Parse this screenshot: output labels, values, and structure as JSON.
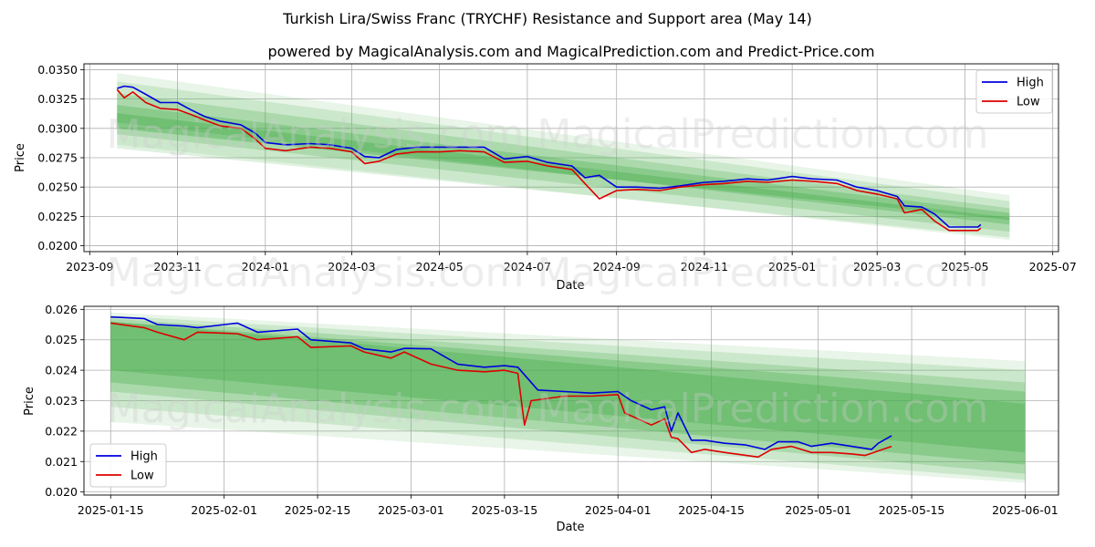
{
  "title": "Turkish Lira/Swiss Franc (TRYCHF) Resistance and Support area (May 14)",
  "subtitle": "powered by MagicalAnalysis.com and MagicalPrediction.com and Predict-Price.com",
  "watermark": "MagicalAnalysis.com    MagicalPrediction.com",
  "colors": {
    "high": "#0000dd",
    "low": "#dd0000",
    "band": "#4caf50",
    "grid": "#b0b0b0"
  },
  "chart_data": [
    {
      "type": "line",
      "xlabel": "Date",
      "ylabel": "Price",
      "xlim": [
        "2023-08-28",
        "2025-07-05"
      ],
      "ylim": [
        0.0195,
        0.0355
      ],
      "x_ticks": [
        "2023-09",
        "2023-11",
        "2024-01",
        "2024-03",
        "2024-05",
        "2024-07",
        "2024-09",
        "2024-11",
        "2025-01",
        "2025-03",
        "2025-05",
        "2025-07"
      ],
      "y_ticks": [
        "0.0200",
        "0.0225",
        "0.0250",
        "0.0275",
        "0.0300",
        "0.0325",
        "0.0350"
      ],
      "legend": {
        "position": "top-right",
        "entries": [
          "High",
          "Low"
        ]
      },
      "grid": true,
      "band": {
        "start": "2023-09-20",
        "end": "2025-06-01",
        "upper_start": [
          0.0347,
          0.034,
          0.033,
          0.032,
          0.0313
        ],
        "upper_end": [
          0.0243,
          0.0238,
          0.0232,
          0.0228,
          0.0224
        ],
        "lower_start": [
          0.0286,
          0.0283,
          0.0295,
          0.0305,
          0.03
        ],
        "lower_end": [
          0.0205,
          0.0207,
          0.0212,
          0.0218,
          0.0222
        ]
      },
      "series": [
        {
          "name": "High",
          "x": [
            "2023-09-20",
            "2023-09-25",
            "2023-10-01",
            "2023-10-10",
            "2023-10-20",
            "2023-11-01",
            "2023-11-10",
            "2023-11-20",
            "2023-12-01",
            "2023-12-15",
            "2023-12-25",
            "2024-01-01",
            "2024-01-15",
            "2024-02-01",
            "2024-02-15",
            "2024-03-01",
            "2024-03-10",
            "2024-03-20",
            "2024-04-01",
            "2024-04-15",
            "2024-05-01",
            "2024-05-15",
            "2024-06-01",
            "2024-06-15",
            "2024-07-01",
            "2024-07-15",
            "2024-08-01",
            "2024-08-10",
            "2024-08-20",
            "2024-09-01",
            "2024-09-15",
            "2024-10-01",
            "2024-10-15",
            "2024-11-01",
            "2024-11-15",
            "2024-12-01",
            "2024-12-15",
            "2025-01-01",
            "2025-01-15",
            "2025-02-01",
            "2025-02-15",
            "2025-03-01",
            "2025-03-15",
            "2025-03-20",
            "2025-04-01",
            "2025-04-10",
            "2025-04-20",
            "2025-05-01",
            "2025-05-10",
            "2025-05-12"
          ],
          "y": [
            0.0334,
            0.0336,
            0.0335,
            0.0329,
            0.0322,
            0.0322,
            0.0316,
            0.031,
            0.0306,
            0.0303,
            0.0296,
            0.0288,
            0.0286,
            0.0287,
            0.0286,
            0.0283,
            0.0276,
            0.0275,
            0.0282,
            0.0284,
            0.0284,
            0.0284,
            0.0284,
            0.0274,
            0.0276,
            0.0271,
            0.0268,
            0.0258,
            0.026,
            0.025,
            0.025,
            0.0249,
            0.0251,
            0.0254,
            0.0255,
            0.0257,
            0.0256,
            0.0259,
            0.0257,
            0.0256,
            0.025,
            0.0247,
            0.0242,
            0.0234,
            0.0233,
            0.0227,
            0.0216,
            0.0216,
            0.0216,
            0.0218
          ]
        },
        {
          "name": "Low",
          "x": [
            "2023-09-20",
            "2023-09-25",
            "2023-10-01",
            "2023-10-10",
            "2023-10-20",
            "2023-11-01",
            "2023-11-10",
            "2023-11-20",
            "2023-12-01",
            "2023-12-15",
            "2023-12-25",
            "2024-01-01",
            "2024-01-15",
            "2024-02-01",
            "2024-02-15",
            "2024-03-01",
            "2024-03-10",
            "2024-03-20",
            "2024-04-01",
            "2024-04-15",
            "2024-05-01",
            "2024-05-15",
            "2024-06-01",
            "2024-06-15",
            "2024-07-01",
            "2024-07-15",
            "2024-08-01",
            "2024-08-10",
            "2024-08-20",
            "2024-09-01",
            "2024-09-15",
            "2024-10-01",
            "2024-10-15",
            "2024-11-01",
            "2024-11-15",
            "2024-12-01",
            "2024-12-15",
            "2025-01-01",
            "2025-01-15",
            "2025-02-01",
            "2025-02-15",
            "2025-03-01",
            "2025-03-15",
            "2025-03-20",
            "2025-04-01",
            "2025-04-10",
            "2025-04-20",
            "2025-05-01",
            "2025-05-10",
            "2025-05-12"
          ],
          "y": [
            0.0333,
            0.0326,
            0.0331,
            0.0322,
            0.0317,
            0.0316,
            0.0312,
            0.0307,
            0.0302,
            0.03,
            0.0291,
            0.0283,
            0.0281,
            0.0284,
            0.0283,
            0.028,
            0.027,
            0.0272,
            0.0278,
            0.028,
            0.028,
            0.0281,
            0.028,
            0.0271,
            0.0272,
            0.0268,
            0.0265,
            0.0253,
            0.024,
            0.0247,
            0.0248,
            0.0247,
            0.025,
            0.0252,
            0.0253,
            0.0255,
            0.0254,
            0.0256,
            0.0255,
            0.0253,
            0.0247,
            0.0244,
            0.024,
            0.0228,
            0.0231,
            0.0221,
            0.0213,
            0.0213,
            0.0213,
            0.0215
          ]
        }
      ]
    },
    {
      "type": "line",
      "xlabel": "Date",
      "ylabel": "Price",
      "xlim": [
        "2025-01-11",
        "2025-06-06"
      ],
      "ylim": [
        0.0199,
        0.0261
      ],
      "x_ticks": [
        "2025-01-15",
        "2025-02-01",
        "2025-02-15",
        "2025-03-01",
        "2025-03-15",
        "2025-04-01",
        "2025-04-15",
        "2025-05-01",
        "2025-05-15",
        "2025-06-01"
      ],
      "y_ticks": [
        "0.020",
        "0.021",
        "0.022",
        "0.023",
        "0.024",
        "0.025",
        "0.026"
      ],
      "legend": {
        "position": "bottom-left",
        "entries": [
          "High",
          "Low"
        ]
      },
      "grid": true,
      "band": {
        "start": "2025-01-15",
        "end": "2025-06-01",
        "upper_start": [
          0.0259,
          0.0258,
          0.0257,
          0.0256,
          0.0256
        ],
        "upper_end": [
          0.0243,
          0.024,
          0.0236,
          0.0233,
          0.0229
        ],
        "lower_start": [
          0.0223,
          0.0228,
          0.0233,
          0.0236,
          0.024
        ],
        "lower_end": [
          0.0203,
          0.0204,
          0.0206,
          0.0209,
          0.0213
        ]
      },
      "series": [
        {
          "name": "High",
          "x": [
            "2025-01-15",
            "2025-01-20",
            "2025-01-22",
            "2025-01-26",
            "2025-01-28",
            "2025-02-03",
            "2025-02-06",
            "2025-02-12",
            "2025-02-14",
            "2025-02-20",
            "2025-02-22",
            "2025-02-26",
            "2025-02-28",
            "2025-03-04",
            "2025-03-08",
            "2025-03-12",
            "2025-03-15",
            "2025-03-17",
            "2025-03-20",
            "2025-03-24",
            "2025-03-28",
            "2025-04-01",
            "2025-04-03",
            "2025-04-06",
            "2025-04-08",
            "2025-04-09",
            "2025-04-10",
            "2025-04-12",
            "2025-04-14",
            "2025-04-17",
            "2025-04-20",
            "2025-04-23",
            "2025-04-25",
            "2025-04-28",
            "2025-04-30",
            "2025-05-03",
            "2025-05-06",
            "2025-05-09",
            "2025-05-10",
            "2025-05-12"
          ],
          "y": [
            0.02575,
            0.0257,
            0.0255,
            0.02545,
            0.0254,
            0.02555,
            0.02525,
            0.02535,
            0.025,
            0.0249,
            0.0247,
            0.0246,
            0.02472,
            0.0247,
            0.0242,
            0.0241,
            0.02415,
            0.0241,
            0.02335,
            0.0233,
            0.02325,
            0.0233,
            0.023,
            0.0227,
            0.0228,
            0.022,
            0.0226,
            0.0217,
            0.0217,
            0.0216,
            0.02155,
            0.0214,
            0.02165,
            0.02165,
            0.0215,
            0.0216,
            0.0215,
            0.0214,
            0.0216,
            0.02185
          ]
        },
        {
          "name": "Low",
          "x": [
            "2025-01-15",
            "2025-01-20",
            "2025-01-22",
            "2025-01-26",
            "2025-01-28",
            "2025-02-03",
            "2025-02-06",
            "2025-02-12",
            "2025-02-14",
            "2025-02-20",
            "2025-02-22",
            "2025-02-26",
            "2025-02-28",
            "2025-03-04",
            "2025-03-08",
            "2025-03-12",
            "2025-03-15",
            "2025-03-17",
            "2025-03-18",
            "2025-03-19",
            "2025-03-24",
            "2025-03-28",
            "2025-04-01",
            "2025-04-02",
            "2025-04-06",
            "2025-04-08",
            "2025-04-09",
            "2025-04-10",
            "2025-04-12",
            "2025-04-14",
            "2025-04-17",
            "2025-04-22",
            "2025-04-24",
            "2025-04-27",
            "2025-04-30",
            "2025-05-03",
            "2025-05-06",
            "2025-05-08",
            "2025-05-10",
            "2025-05-12"
          ],
          "y": [
            0.02555,
            0.0254,
            0.02525,
            0.025,
            0.02525,
            0.0252,
            0.025,
            0.0251,
            0.02475,
            0.0248,
            0.0246,
            0.0244,
            0.0246,
            0.0242,
            0.024,
            0.02395,
            0.024,
            0.0239,
            0.0222,
            0.023,
            0.02315,
            0.02315,
            0.0232,
            0.0226,
            0.0222,
            0.0224,
            0.0218,
            0.02175,
            0.0213,
            0.0214,
            0.0213,
            0.02115,
            0.0214,
            0.0215,
            0.0213,
            0.0213,
            0.02125,
            0.0212,
            0.02135,
            0.0215
          ]
        }
      ]
    }
  ]
}
